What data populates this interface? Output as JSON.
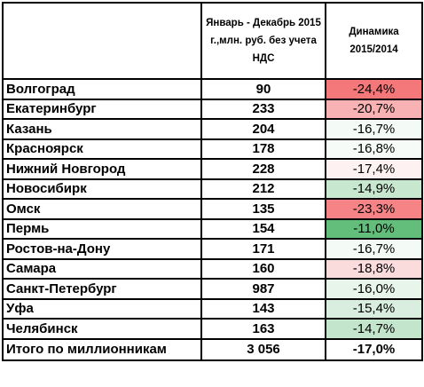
{
  "header": {
    "col_value": "Январь - Декабрь 2015 г.,млн.  руб. без учета НДС",
    "col_dynamics": "Динамика 2015/2014"
  },
  "rows": [
    {
      "city": "Волгоград",
      "value": "90",
      "dynamics": "-24,4%",
      "color": "#f4777a"
    },
    {
      "city": "Екатеринбург",
      "value": "233",
      "dynamics": "-20,7%",
      "color": "#f9b2b4"
    },
    {
      "city": "Казань",
      "value": "204",
      "dynamics": "-16,7%",
      "color": "#f4faf5"
    },
    {
      "city": "Красноярск",
      "value": "178",
      "dynamics": "-16,8%",
      "color": "#f7fbf8"
    },
    {
      "city": "Нижний Новгород",
      "value": "228",
      "dynamics": "-17,4%",
      "color": "#fdf1f2"
    },
    {
      "city": "Новосибирк",
      "value": "212",
      "dynamics": "-14,9%",
      "color": "#c8e7cf"
    },
    {
      "city": "Омск",
      "value": "135",
      "dynamics": "-23,3%",
      "color": "#f68487"
    },
    {
      "city": "Пермь",
      "value": "154",
      "dynamics": "-11,0%",
      "color": "#63be7b"
    },
    {
      "city": "Ростов-на-Дону",
      "value": "171",
      "dynamics": "-16,7%",
      "color": "#f4faf5"
    },
    {
      "city": "Самара",
      "value": "160",
      "dynamics": "-18,8%",
      "color": "#fbdcdd"
    },
    {
      "city": "Санкт-Петербург",
      "value": "987",
      "dynamics": "-16,0%",
      "color": "#e8f5eb"
    },
    {
      "city": "Уфа",
      "value": "143",
      "dynamics": "-15,4%",
      "color": "#d9eedf"
    },
    {
      "city": "Челябинск",
      "value": "163",
      "dynamics": "-14,7%",
      "color": "#c3e5cb"
    }
  ],
  "total": {
    "city": "Итого по миллионникам",
    "value": "3 056",
    "dynamics": "-17,0%"
  }
}
